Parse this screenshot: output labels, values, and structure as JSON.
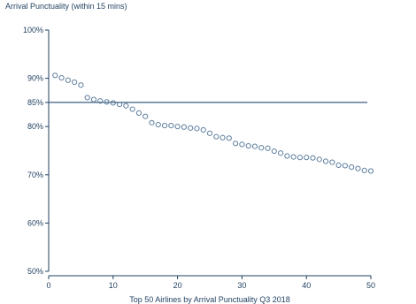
{
  "chart_data": {
    "type": "scatter",
    "title": "Arrival Punctuality (within 15 mins)",
    "xlabel": "Top 50 Airlines by Arrival Punctuality Q3 2018",
    "ylabel": "",
    "xlim": [
      0,
      50
    ],
    "ylim": [
      50,
      100
    ],
    "x_ticks": [
      0,
      10,
      20,
      30,
      40,
      50
    ],
    "y_ticks": [
      50,
      60,
      70,
      80,
      85,
      90,
      100
    ],
    "y_tick_labels": [
      "50%",
      "60%",
      "70%",
      "80%",
      "85%",
      "90%",
      "100%"
    ],
    "reference_line": {
      "y": 85
    },
    "grid": false,
    "legend": "none",
    "colors": {
      "axis": "#1f3f5f",
      "marker": "#5f7f9f",
      "reference_line": "#3f5f7f"
    },
    "points": {
      "x": [
        1,
        2,
        3,
        4,
        5,
        6,
        7,
        8,
        9,
        10,
        11,
        12,
        13,
        14,
        15,
        16,
        17,
        18,
        19,
        20,
        21,
        22,
        23,
        24,
        25,
        26,
        27,
        28,
        29,
        30,
        31,
        32,
        33,
        34,
        35,
        36,
        37,
        38,
        39,
        40,
        41,
        42,
        43,
        44,
        45,
        46,
        47,
        48,
        49,
        50
      ],
      "y": [
        90.6,
        90.1,
        89.6,
        89.2,
        88.6,
        86.0,
        85.6,
        85.3,
        85.1,
        84.9,
        84.6,
        84.3,
        83.6,
        82.8,
        82.1,
        80.8,
        80.4,
        80.2,
        80.2,
        80.0,
        79.9,
        79.7,
        79.6,
        79.3,
        78.6,
        77.9,
        77.7,
        77.6,
        76.5,
        76.3,
        76.0,
        75.9,
        75.6,
        75.5,
        74.9,
        74.5,
        73.9,
        73.7,
        73.6,
        73.6,
        73.5,
        73.2,
        72.8,
        72.6,
        72.0,
        71.9,
        71.6,
        71.3,
        70.9,
        70.8
      ]
    }
  }
}
